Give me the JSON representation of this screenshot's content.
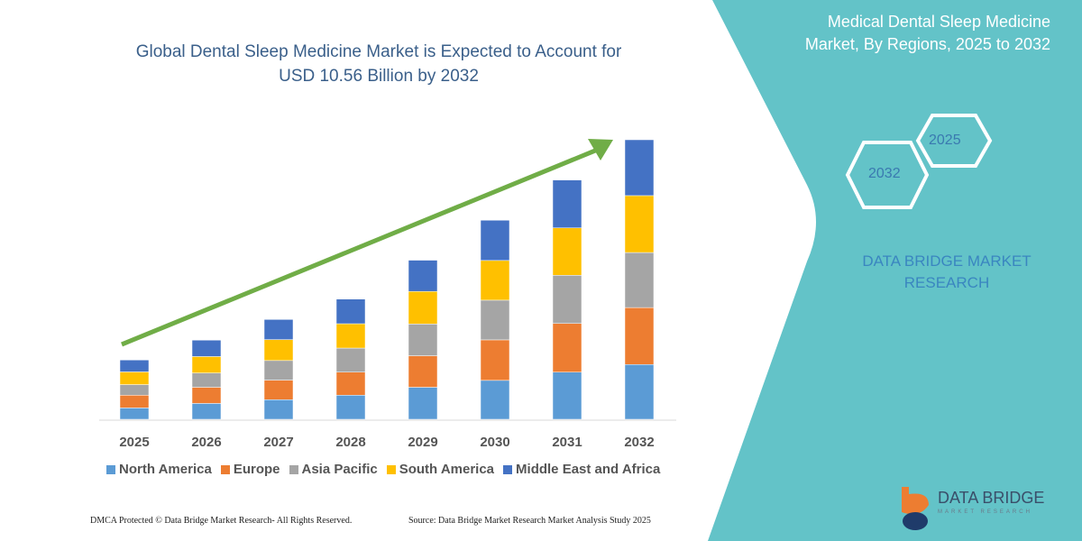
{
  "header": {
    "title_line1": "Global Dental Sleep Medicine Market is Expected to Account for",
    "title_line2": "USD 10.56 Billion by 2032"
  },
  "side_panel": {
    "title_line1": "Medical Dental Sleep Medicine",
    "title_line2": "Market, By Regions, 2025 to 2032",
    "hex_a": "2025",
    "hex_b": "2032",
    "brand_line1": "DATA BRIDGE MARKET",
    "brand_line2": "RESEARCH",
    "panel_color": "#63c3c8"
  },
  "logo": {
    "name": "DATA BRIDGE",
    "sub": "MARKET RESEARCH"
  },
  "footer": {
    "left": "DMCA Protected © Data Bridge Market Research-  All Rights Reserved.",
    "right": "Source: Data Bridge Market Research  Market Analysis Study 2025"
  },
  "chart_data": {
    "type": "bar",
    "stacked": true,
    "title": "Global Dental Sleep Medicine Market is Expected to Account for USD 10.56 Billion by 2032",
    "categories": [
      "2025",
      "2026",
      "2027",
      "2028",
      "2029",
      "2030",
      "2031",
      "2032"
    ],
    "series": [
      {
        "name": "North America",
        "color": "#5b9bd5",
        "values": [
          0.43,
          0.6,
          0.74,
          0.91,
          1.21,
          1.47,
          1.78,
          2.07
        ]
      },
      {
        "name": "Europe",
        "color": "#ed7d31",
        "values": [
          0.48,
          0.61,
          0.74,
          0.87,
          1.19,
          1.53,
          1.84,
          2.15
        ]
      },
      {
        "name": "Asia Pacific",
        "color": "#a5a5a5",
        "values": [
          0.4,
          0.54,
          0.74,
          0.91,
          1.2,
          1.5,
          1.82,
          2.08
        ]
      },
      {
        "name": "South America",
        "color": "#ffc000",
        "values": [
          0.48,
          0.62,
          0.79,
          0.92,
          1.23,
          1.5,
          1.79,
          2.15
        ]
      },
      {
        "name": "Middle East and Africa",
        "color": "#4472c4",
        "values": [
          0.45,
          0.62,
          0.76,
          0.93,
          1.18,
          1.52,
          1.81,
          2.11
        ]
      }
    ],
    "ylim": [
      0,
      10.56
    ],
    "grid": false,
    "legend": "bottom",
    "trend_arrow_color": "#70ad47"
  }
}
